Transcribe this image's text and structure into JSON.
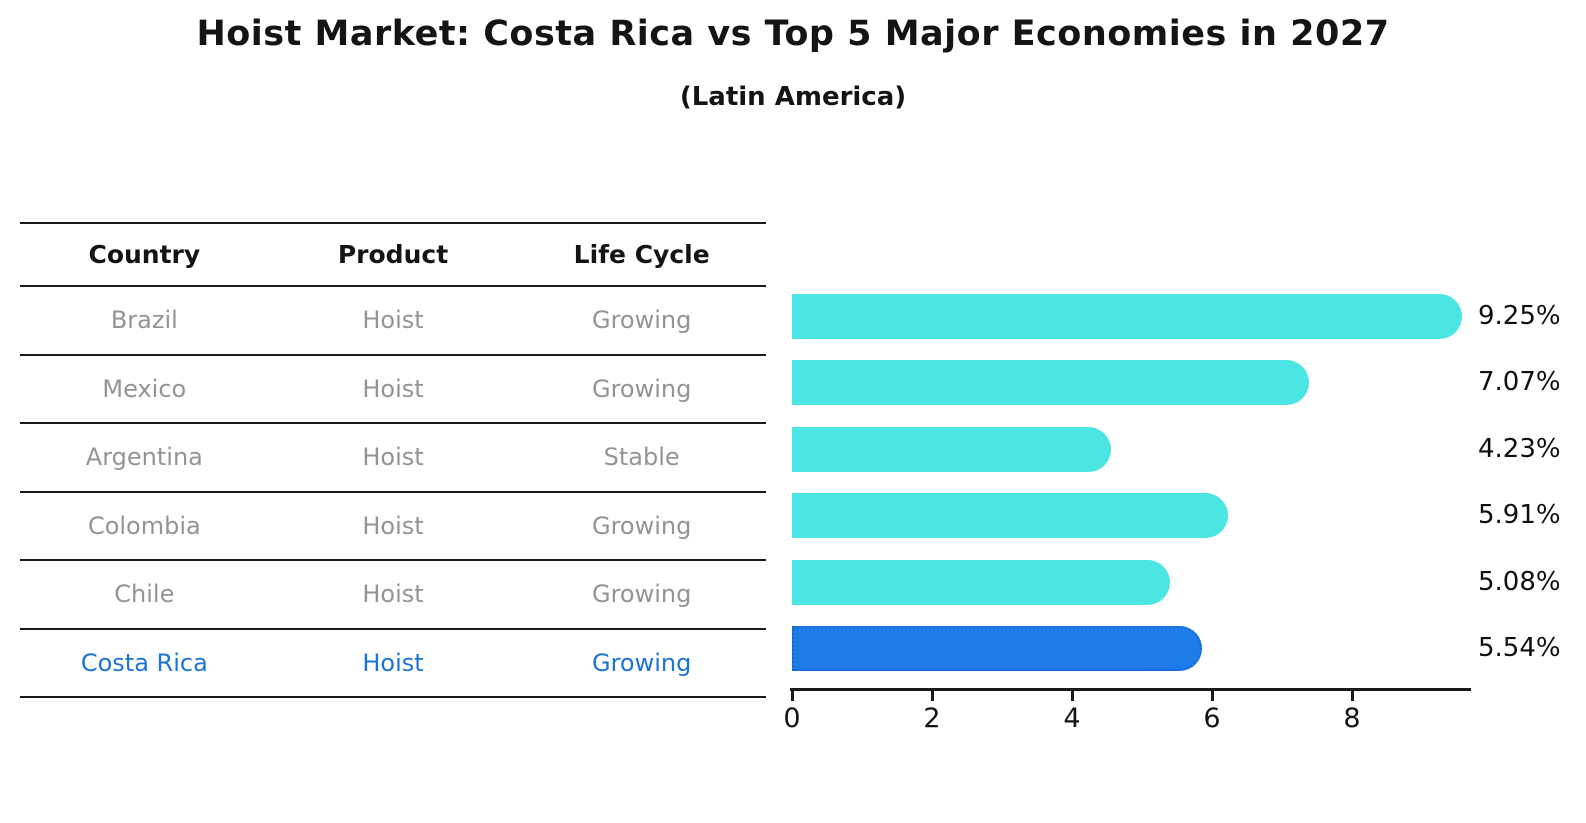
{
  "title": "Hoist Market: Costa Rica vs Top 5 Major Economies in 2027",
  "subtitle": "(Latin America)",
  "table": {
    "headers": [
      "Country",
      "Product",
      "Life Cycle"
    ],
    "rows": [
      {
        "country": "Brazil",
        "product": "Hoist",
        "life_cycle": "Growing"
      },
      {
        "country": "Mexico",
        "product": "Hoist",
        "life_cycle": "Growing"
      },
      {
        "country": "Argentina",
        "product": "Hoist",
        "life_cycle": "Stable"
      },
      {
        "country": "Colombia",
        "product": "Hoist",
        "life_cycle": "Growing"
      },
      {
        "country": "Chile",
        "product": "Hoist",
        "life_cycle": "Growing"
      },
      {
        "country": "Costa Rica",
        "product": "Hoist",
        "life_cycle": "Growing"
      }
    ],
    "highlight_row": "Costa Rica"
  },
  "chart_data": {
    "type": "bar",
    "orientation": "horizontal",
    "title": "Hoist Market: Costa Rica vs Top 5 Major Economies in 2027",
    "subtitle": "(Latin America)",
    "categories": [
      "Brazil",
      "Mexico",
      "Argentina",
      "Colombia",
      "Chile",
      "Costa Rica"
    ],
    "values": [
      9.25,
      7.07,
      4.23,
      5.91,
      5.08,
      5.54
    ],
    "value_labels": [
      "9.25%",
      "7.07%",
      "4.23%",
      "5.91%",
      "5.08%",
      "5.54%"
    ],
    "highlight_category": "Costa Rica",
    "xlabel": "",
    "ylabel": "",
    "xlim": [
      0,
      9.7
    ],
    "x_ticks": [
      0,
      2,
      4,
      6,
      8
    ],
    "grid": false,
    "legend": false,
    "colors": {
      "bar": "#4BE5E3",
      "highlight_bar": "#1E7CE8",
      "highlight_border": "#1566CC",
      "highlight_text": "#1B74D6",
      "row_text": "#949494",
      "header_text": "#141414",
      "axis": "#1A1A1A"
    }
  }
}
